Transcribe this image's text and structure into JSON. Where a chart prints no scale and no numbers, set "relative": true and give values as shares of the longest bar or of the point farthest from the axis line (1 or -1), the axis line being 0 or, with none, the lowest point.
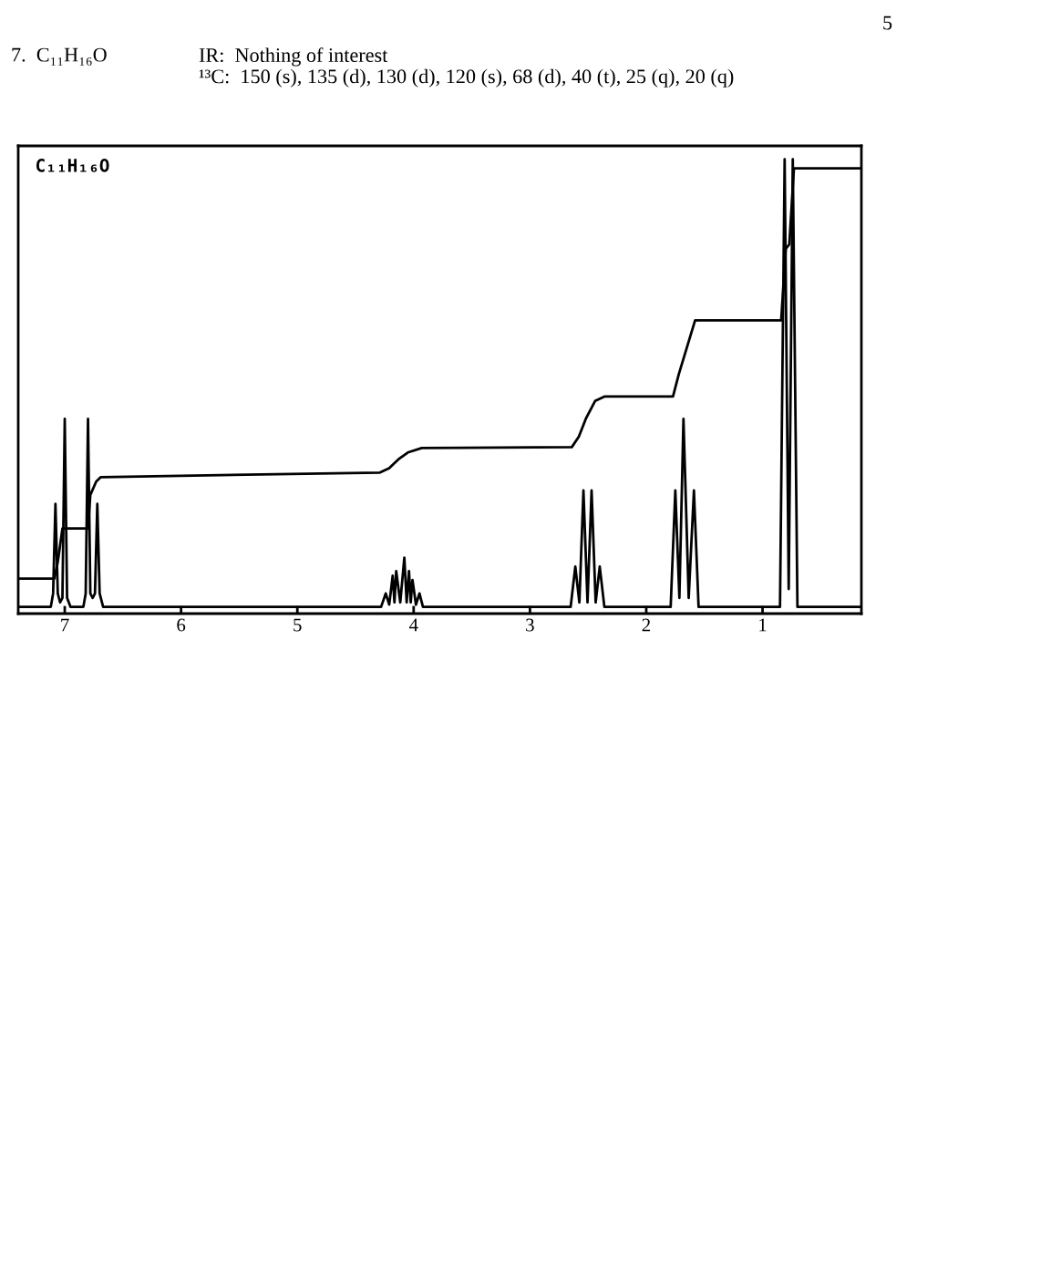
{
  "chart_data": {
    "type": "line",
    "title": "7.  C₁₁H₁₆O",
    "subtitle": "IR:  Nothing of interest\n¹³C:  150 (s), 135 (d), 130 (d), 120 (s), 68 (d), 40 (t), 25 (q), 20 (q)",
    "annotations": [
      "5",
      "C₁₁H₁₆O"
    ],
    "relative": true,
    "xlim": [
      7.4,
      0.15
    ],
    "xticks": [
      7,
      6,
      5,
      4,
      3,
      2,
      1
    ],
    "tick_labels": "x",
    "marker": "none",
    "line_style": "solid",
    "series": [
      {
        "color": "#000000",
        "x": [
          7.4,
          7.12,
          7.1,
          7.08,
          7.06,
          7.04,
          7.02,
          7.0,
          6.98,
          6.95,
          6.84,
          6.82,
          6.8,
          6.78,
          6.76,
          6.74,
          6.72,
          6.7,
          6.67,
          4.28,
          4.24,
          4.21,
          4.18,
          4.165,
          4.15,
          4.115,
          4.08,
          4.06,
          4.04,
          4.025,
          4.01,
          3.98,
          3.95,
          3.92,
          2.65,
          2.61,
          2.575,
          2.54,
          2.505,
          2.47,
          2.435,
          2.4,
          2.36,
          1.79,
          1.75,
          1.715,
          1.68,
          1.635,
          1.59,
          1.55,
          0.85,
          0.81,
          0.775,
          0.74,
          0.7,
          0.15
        ],
        "values": [
          0,
          0,
          0.03,
          0.23,
          0.03,
          0.01,
          0.02,
          0.42,
          0.02,
          0,
          0,
          0.03,
          0.42,
          0.03,
          0.02,
          0.03,
          0.23,
          0.03,
          0,
          0,
          0.03,
          0.005,
          0.07,
          0.01,
          0.08,
          0.01,
          0.11,
          0.01,
          0.08,
          0.01,
          0.06,
          0.005,
          0.03,
          0,
          0,
          0.09,
          0.01,
          0.26,
          0.01,
          0.26,
          0.01,
          0.09,
          0,
          0,
          0.26,
          0.02,
          0.42,
          0.02,
          0.26,
          0,
          0,
          1.0,
          0.04,
          1.0,
          0,
          0
        ]
      },
      {
        "color": "#000000",
        "x": [
          7.4,
          7.09,
          7.06,
          7.02,
          6.8,
          6.78,
          6.73,
          6.69,
          4.29,
          4.21,
          4.13,
          4.05,
          3.93,
          2.64,
          2.58,
          2.52,
          2.44,
          2.36,
          1.77,
          1.72,
          1.65,
          1.58,
          0.84,
          0.8,
          0.77,
          0.73,
          0.15
        ],
        "values": [
          0.063,
          0.063,
          0.1,
          0.175,
          0.175,
          0.25,
          0.28,
          0.29,
          0.3,
          0.31,
          0.33,
          0.345,
          0.355,
          0.357,
          0.38,
          0.42,
          0.46,
          0.47,
          0.47,
          0.52,
          0.58,
          0.64,
          0.64,
          0.8,
          0.81,
          0.98,
          0.98
        ]
      }
    ]
  }
}
